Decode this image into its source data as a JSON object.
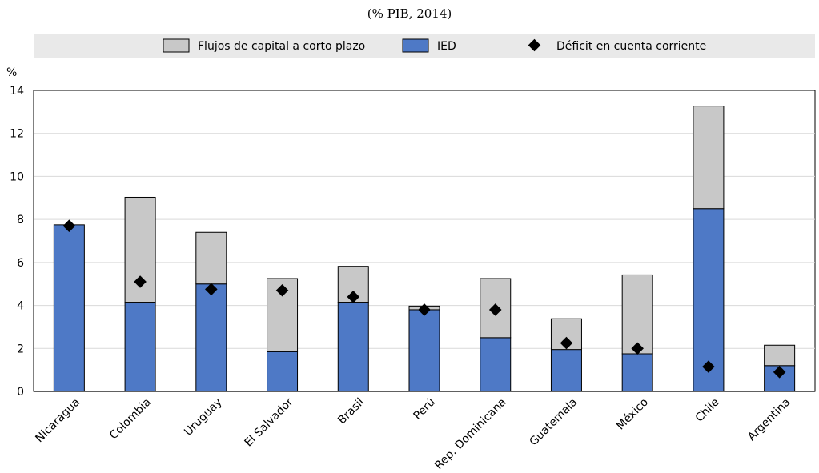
{
  "subtitle": "(% PIB, 2014)",
  "colors": {
    "short_term": "#c8c8c8",
    "fdi": "#4e79c6",
    "deficit": "#000000",
    "legend_bg": "#e9e9e9",
    "plot_bg": "#ffffff"
  },
  "legend": {
    "short_term": "Flujos de capital a corto plazo",
    "fdi": "IED",
    "deficit": "Déficit en cuenta corriente"
  },
  "chart_data": {
    "type": "bar",
    "stacked": true,
    "title": "(% PIB, 2014)",
    "ylabel": "%",
    "ylim": [
      0,
      14
    ],
    "yticks": [
      0,
      2,
      4,
      6,
      8,
      10,
      12,
      14
    ],
    "grid": true,
    "legend_position": "top",
    "categories": [
      "Nicaragua",
      "Colombia",
      "Uruguay",
      "El Salvador",
      "Brasil",
      "Perú",
      "Rep. Dominicana",
      "Guatemala",
      "México",
      "Chile",
      "Argentina"
    ],
    "series": [
      {
        "name": "IED",
        "kind": "bar",
        "values": [
          7.75,
          4.15,
          5.0,
          1.85,
          4.15,
          3.8,
          2.5,
          1.95,
          1.75,
          8.5,
          1.2
        ]
      },
      {
        "name": "Flujos de capital a corto plazo",
        "kind": "bar",
        "values": [
          0.0,
          4.88,
          2.4,
          3.4,
          1.67,
          0.17,
          2.75,
          1.43,
          3.67,
          4.77,
          0.95
        ]
      },
      {
        "name": "Déficit en cuenta corriente",
        "kind": "marker",
        "values": [
          7.7,
          5.1,
          4.75,
          4.7,
          4.4,
          3.8,
          3.8,
          2.25,
          2.0,
          1.15,
          0.9
        ]
      }
    ]
  }
}
